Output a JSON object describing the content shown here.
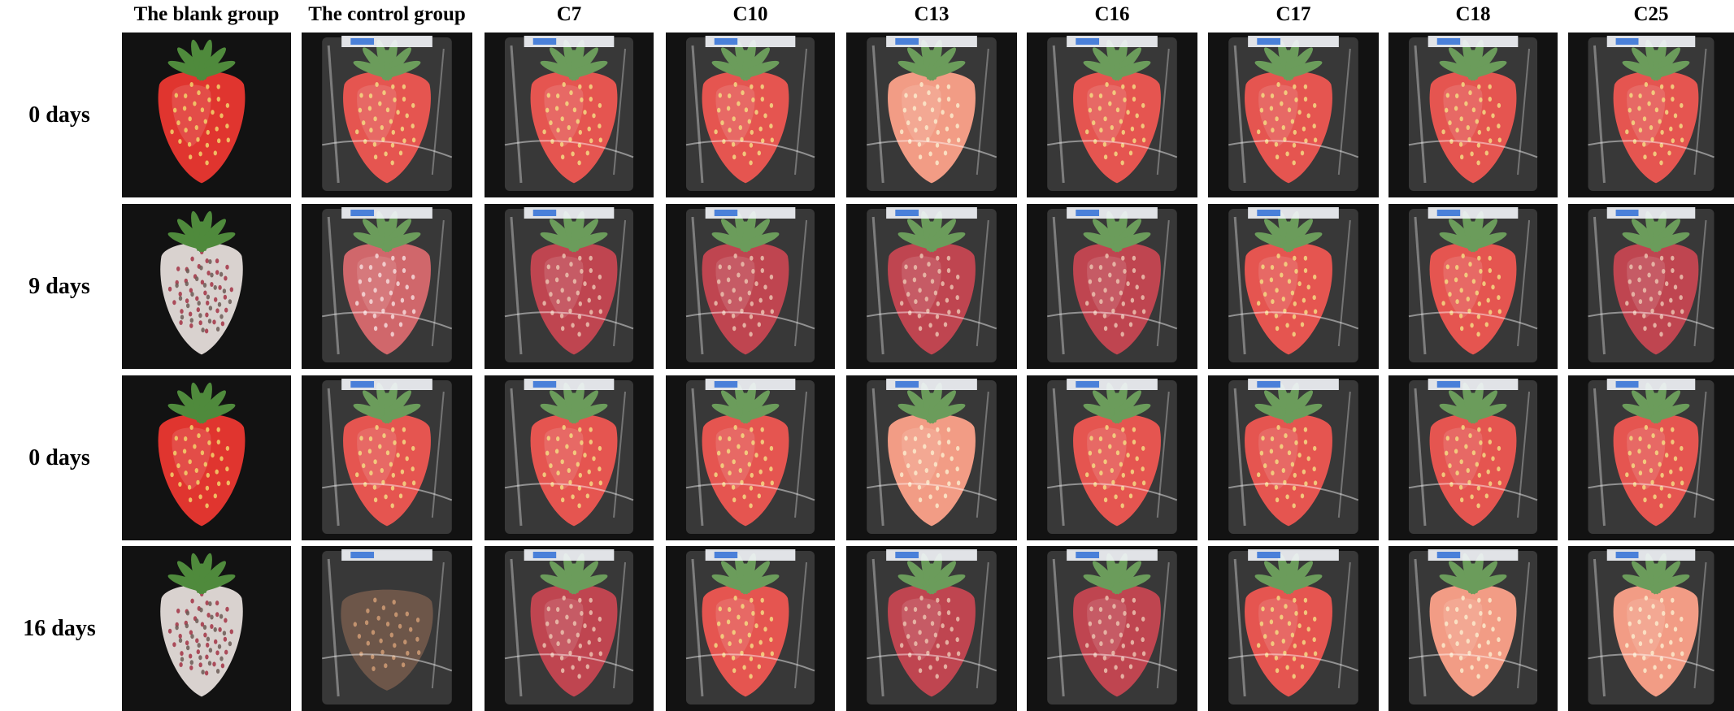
{
  "columns": [
    {
      "label": "The blank group",
      "packaged": false
    },
    {
      "label": "The control group",
      "packaged": true
    },
    {
      "label": "C7",
      "packaged": true
    },
    {
      "label": "C10",
      "packaged": true
    },
    {
      "label": "C13",
      "packaged": true
    },
    {
      "label": "C16",
      "packaged": true
    },
    {
      "label": "C17",
      "packaged": true
    },
    {
      "label": "C18",
      "packaged": true
    },
    {
      "label": "C25",
      "packaged": true
    }
  ],
  "rows": [
    {
      "label": "0 days",
      "states": [
        "fresh",
        "fresh-wrapped",
        "fresh-wrapped",
        "fresh-wrapped",
        "pale-wrapped",
        "fresh-wrapped",
        "fresh-wrapped",
        "fresh-wrapped",
        "fresh-wrapped"
      ]
    },
    {
      "label": "9 days",
      "states": [
        "moldy",
        "slight-mold",
        "dark-wrapped",
        "dark-wrapped",
        "dark-wrapped",
        "dark-wrapped",
        "fresh-wrapped",
        "fresh-wrapped",
        "dark-wrapped"
      ]
    },
    {
      "label": "0 days",
      "states": [
        "fresh",
        "fresh-wrapped",
        "fresh-wrapped",
        "fresh-wrapped",
        "pale-wrapped",
        "fresh-wrapped",
        "fresh-wrapped",
        "fresh-wrapped",
        "fresh-wrapped"
      ]
    },
    {
      "label": "16 days",
      "states": [
        "moldy",
        "rotten",
        "dark-wrapped",
        "fresh-wrapped",
        "dark-wrapped",
        "dark-wrapped",
        "fresh-wrapped",
        "pale-wrapped",
        "pale-wrapped"
      ]
    }
  ],
  "colors": {
    "background": "#121212",
    "berry_fresh": "#e0352f",
    "berry_pale": "#f08a6e",
    "berry_dark": "#b3222f",
    "leaf": "#4f8a3c",
    "mold": "#d9d2cf",
    "rot": "#5a3b2a",
    "label_tag": "#2f6fd6"
  }
}
